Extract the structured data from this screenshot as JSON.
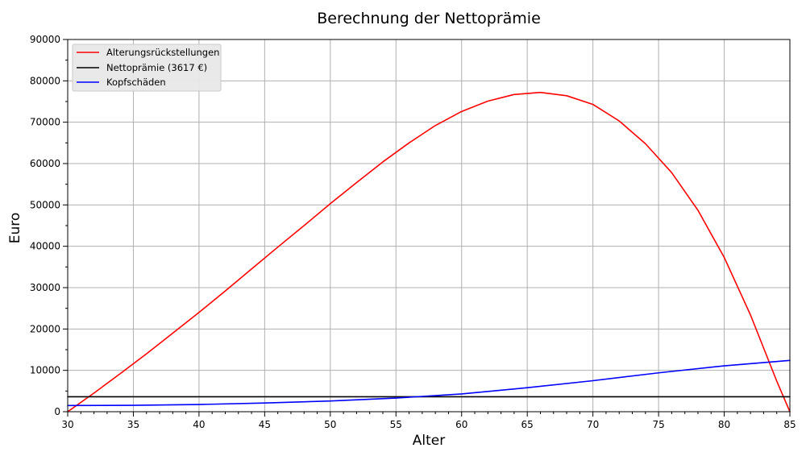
{
  "chart_data": {
    "type": "line",
    "title": "Berechnung der Nettoprämie",
    "xlabel": "Alter",
    "ylabel": "Euro",
    "xlim": [
      30,
      85
    ],
    "ylim": [
      0,
      90000
    ],
    "x_ticks": [
      30,
      35,
      40,
      45,
      50,
      55,
      60,
      65,
      70,
      75,
      80,
      85
    ],
    "y_ticks": [
      0,
      10000,
      20000,
      30000,
      40000,
      50000,
      60000,
      70000,
      80000,
      90000
    ],
    "x_tick_labels": [
      "30",
      "35",
      "40",
      "45",
      "50",
      "55",
      "60",
      "65",
      "70",
      "75",
      "80",
      "85"
    ],
    "y_tick_labels": [
      "0",
      "10000",
      "20000",
      "30000",
      "40000",
      "50000",
      "60000",
      "70000",
      "80000",
      "90000"
    ],
    "grid": true,
    "legend_position": "top-left",
    "series": [
      {
        "name": "Alterungsrückstellungen",
        "color": "#ff0000",
        "x": [
          30,
          32,
          34,
          36,
          38,
          40,
          42,
          44,
          46,
          48,
          50,
          52,
          54,
          56,
          58,
          60,
          62,
          64,
          66,
          68,
          70,
          72,
          74,
          76,
          78,
          80,
          82,
          84,
          85
        ],
        "y": [
          0,
          4500,
          9200,
          14000,
          19000,
          24000,
          29200,
          34500,
          39800,
          45000,
          50300,
          55400,
          60400,
          65000,
          69200,
          72600,
          75100,
          76700,
          77200,
          76400,
          74300,
          70300,
          64800,
          57800,
          48700,
          37300,
          23400,
          7400,
          0
        ]
      },
      {
        "name": "Nettoprämie (3617 €)",
        "color": "#000000",
        "x": [
          30,
          85
        ],
        "y": [
          3617,
          3617
        ]
      },
      {
        "name": "Kopfschäden",
        "color": "#0000ff",
        "x": [
          30,
          35,
          40,
          45,
          50,
          55,
          60,
          65,
          70,
          75,
          80,
          85
        ],
        "y": [
          1500,
          1550,
          1750,
          2100,
          2600,
          3300,
          4300,
          5800,
          7500,
          9400,
          11100,
          12400
        ]
      }
    ]
  }
}
